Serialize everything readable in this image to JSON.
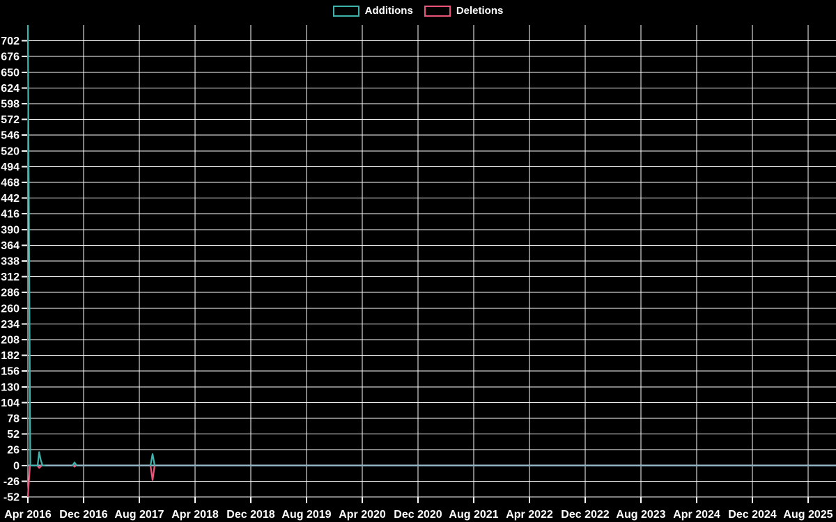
{
  "legend": {
    "items": [
      {
        "label": "Additions",
        "color": "#3fb3ab"
      },
      {
        "label": "Deletions",
        "color": "#ea5478"
      }
    ]
  },
  "chart_data": {
    "type": "line",
    "title": "",
    "xlabel": "",
    "ylabel": "",
    "background": "#000000",
    "grid": true,
    "grid_color": "#ffffff",
    "axis_text_color": "#ffffff",
    "zero_line_color": "#8fb0bf",
    "legend_position": "top-center",
    "x_ticks": [
      "Apr 2016",
      "Dec 2016",
      "Aug 2017",
      "Apr 2018",
      "Dec 2018",
      "Aug 2019",
      "Apr 2020",
      "Dec 2020",
      "Aug 2021",
      "Apr 2022",
      "Dec 2022",
      "Aug 2023",
      "Apr 2024",
      "Dec 2024",
      "Aug 2025"
    ],
    "x_tick_spacing_months": 8,
    "x_range_months_from_first_tick": [
      0,
      116
    ],
    "y_ticks": [
      702,
      676,
      650,
      624,
      598,
      572,
      546,
      520,
      494,
      468,
      442,
      416,
      390,
      364,
      338,
      312,
      286,
      260,
      234,
      208,
      182,
      156,
      130,
      104,
      78,
      52,
      26,
      0,
      -26,
      -52
    ],
    "ylim": [
      -52,
      728
    ],
    "y_tick_step": 26,
    "series": [
      {
        "name": "Additions",
        "color": "#3fb3ab",
        "values_note": "weekly additions; value is 0 everywhere except the spikes below (x = months after Apr 2016)",
        "segments": [
          [
            [
              0,
              727
            ],
            [
              0.35,
              0
            ],
            [
              1.4,
              0
            ],
            [
              1.62,
              22
            ],
            [
              1.85,
              9
            ],
            [
              2.1,
              0
            ],
            [
              2.4,
              0
            ]
          ],
          [
            [
              6.4,
              0
            ],
            [
              6.7,
              5
            ],
            [
              7.0,
              0
            ]
          ],
          [
            [
              17.6,
              0
            ],
            [
              17.9,
              19
            ],
            [
              18.2,
              0
            ]
          ]
        ]
      },
      {
        "name": "Deletions",
        "color": "#ea5478",
        "values_note": "weekly deletions (negative); value is 0 everywhere except the spikes below (x = months after Apr 2016)",
        "segments": [
          [
            [
              0,
              -51
            ],
            [
              0.3,
              0
            ],
            [
              1.35,
              0
            ],
            [
              1.62,
              -4
            ],
            [
              2.0,
              0
            ],
            [
              2.3,
              0
            ]
          ],
          [
            [
              6.5,
              0
            ],
            [
              6.7,
              -2
            ],
            [
              6.9,
              0
            ]
          ],
          [
            [
              17.6,
              0
            ],
            [
              17.9,
              -24
            ],
            [
              18.2,
              0
            ]
          ]
        ]
      }
    ]
  }
}
